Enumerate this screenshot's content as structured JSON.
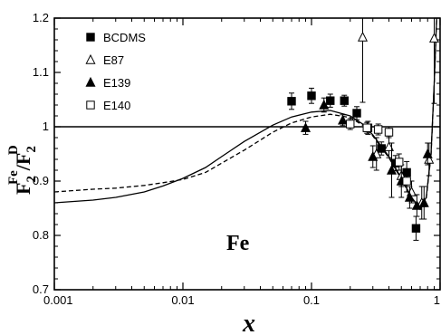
{
  "chart_data": {
    "type": "scatter",
    "xscale": "log",
    "xlim": [
      0.001,
      1
    ],
    "ylim": [
      0.7,
      1.2
    ],
    "xlabel": "x",
    "ylabel": "F2Fe/F2D",
    "ylabel_parts": {
      "main": "F",
      "sub": "2",
      "sup": "Fe",
      "slash": "/",
      "main2": "F",
      "sub2": "2",
      "sup2": "D"
    },
    "annotation": "Fe",
    "x_ticks": [
      0.001,
      0.01,
      0.1,
      1
    ],
    "x_tick_labels": [
      "0.001",
      "0.01",
      "0.1",
      "1"
    ],
    "y_ticks": [
      0.7,
      0.8,
      0.9,
      1.0,
      1.1,
      1.2
    ],
    "y_tick_labels": [
      "0.7",
      "0.8",
      "0.9",
      "1",
      "1.1",
      "1.2"
    ],
    "reference_line": 1.0,
    "legend": {
      "placement": "top-left",
      "entries": [
        "BCDMS",
        "E87",
        "E139",
        "E140"
      ]
    },
    "series": [
      {
        "name": "BCDMS",
        "marker": "filled-square",
        "points": [
          {
            "x": 0.07,
            "y": 1.047,
            "err": 0.015
          },
          {
            "x": 0.1,
            "y": 1.057,
            "err": 0.014
          },
          {
            "x": 0.14,
            "y": 1.048,
            "err": 0.012
          },
          {
            "x": 0.18,
            "y": 1.048,
            "err": 0.01
          },
          {
            "x": 0.225,
            "y": 1.025,
            "err": 0.012
          },
          {
            "x": 0.275,
            "y": 0.998,
            "err": 0.012
          },
          {
            "x": 0.35,
            "y": 0.96,
            "err": 0.012
          },
          {
            "x": 0.45,
            "y": 0.933,
            "err": 0.014
          },
          {
            "x": 0.55,
            "y": 0.916,
            "err": 0.02
          },
          {
            "x": 0.65,
            "y": 0.813,
            "err": 0.022
          }
        ]
      },
      {
        "name": "E87",
        "marker": "open-triangle",
        "points": [
          {
            "x": 0.25,
            "y": 1.165,
            "err": 0.12
          },
          {
            "x": 0.32,
            "y": 0.95,
            "err": 0.03
          },
          {
            "x": 0.4,
            "y": 0.963,
            "err": 0.02
          },
          {
            "x": 0.5,
            "y": 0.91,
            "err": 0.02
          },
          {
            "x": 0.6,
            "y": 0.88,
            "err": 0.02
          },
          {
            "x": 0.72,
            "y": 0.86,
            "err": 0.03
          },
          {
            "x": 0.82,
            "y": 0.94,
            "err": 0.03
          },
          {
            "x": 0.9,
            "y": 1.163,
            "err": 0.12
          }
        ]
      },
      {
        "name": "E139",
        "marker": "filled-triangle",
        "points": [
          {
            "x": 0.09,
            "y": 0.998,
            "err": 0.012
          },
          {
            "x": 0.125,
            "y": 1.04,
            "err": 0.013
          },
          {
            "x": 0.175,
            "y": 1.012,
            "err": 0.01
          },
          {
            "x": 0.3,
            "y": 0.945,
            "err": 0.02
          },
          {
            "x": 0.42,
            "y": 0.92,
            "err": 0.05
          },
          {
            "x": 0.5,
            "y": 0.9,
            "err": 0.03
          },
          {
            "x": 0.58,
            "y": 0.87,
            "err": 0.02
          },
          {
            "x": 0.66,
            "y": 0.855,
            "err": 0.02
          },
          {
            "x": 0.75,
            "y": 0.86,
            "err": 0.03
          },
          {
            "x": 0.8,
            "y": 0.95,
            "err": 0.02
          }
        ]
      },
      {
        "name": "E140",
        "marker": "open-square",
        "points": [
          {
            "x": 0.2,
            "y": 1.005,
            "err": 0.01
          },
          {
            "x": 0.27,
            "y": 0.998,
            "err": 0.01
          },
          {
            "x": 0.33,
            "y": 0.995,
            "err": 0.01
          },
          {
            "x": 0.4,
            "y": 0.99,
            "err": 0.01
          },
          {
            "x": 0.48,
            "y": 0.935,
            "err": 0.015
          },
          {
            "x": 0.55,
            "y": 0.9,
            "err": 0.02
          }
        ]
      }
    ],
    "curves": [
      {
        "style": "solid",
        "points": [
          [
            0.001,
            0.86
          ],
          [
            0.002,
            0.865
          ],
          [
            0.003,
            0.87
          ],
          [
            0.005,
            0.88
          ],
          [
            0.007,
            0.891
          ],
          [
            0.01,
            0.905
          ],
          [
            0.015,
            0.925
          ],
          [
            0.02,
            0.945
          ],
          [
            0.03,
            0.973
          ],
          [
            0.05,
            1.003
          ],
          [
            0.07,
            1.018
          ],
          [
            0.1,
            1.027
          ],
          [
            0.14,
            1.03
          ],
          [
            0.2,
            1.02
          ],
          [
            0.25,
            1.005
          ],
          [
            0.3,
            0.985
          ],
          [
            0.4,
            0.945
          ],
          [
            0.5,
            0.905
          ],
          [
            0.6,
            0.87
          ],
          [
            0.7,
            0.85
          ],
          [
            0.78,
            0.87
          ],
          [
            0.85,
            0.95
          ],
          [
            0.9,
            1.08
          ],
          [
            0.94,
            1.2
          ]
        ]
      },
      {
        "style": "dashed",
        "points": [
          [
            0.001,
            0.88
          ],
          [
            0.002,
            0.885
          ],
          [
            0.003,
            0.887
          ],
          [
            0.005,
            0.892
          ],
          [
            0.007,
            0.897
          ],
          [
            0.01,
            0.903
          ],
          [
            0.015,
            0.916
          ],
          [
            0.02,
            0.933
          ],
          [
            0.03,
            0.957
          ],
          [
            0.05,
            0.99
          ],
          [
            0.07,
            1.007
          ],
          [
            0.1,
            1.018
          ],
          [
            0.14,
            1.023
          ],
          [
            0.2,
            1.017
          ],
          [
            0.25,
            1.003
          ],
          [
            0.3,
            0.983
          ],
          [
            0.4,
            0.943
          ],
          [
            0.5,
            0.903
          ],
          [
            0.6,
            0.868
          ],
          [
            0.7,
            0.848
          ],
          [
            0.78,
            0.868
          ],
          [
            0.85,
            0.948
          ],
          [
            0.9,
            1.078
          ],
          [
            0.94,
            1.2
          ]
        ]
      }
    ]
  }
}
